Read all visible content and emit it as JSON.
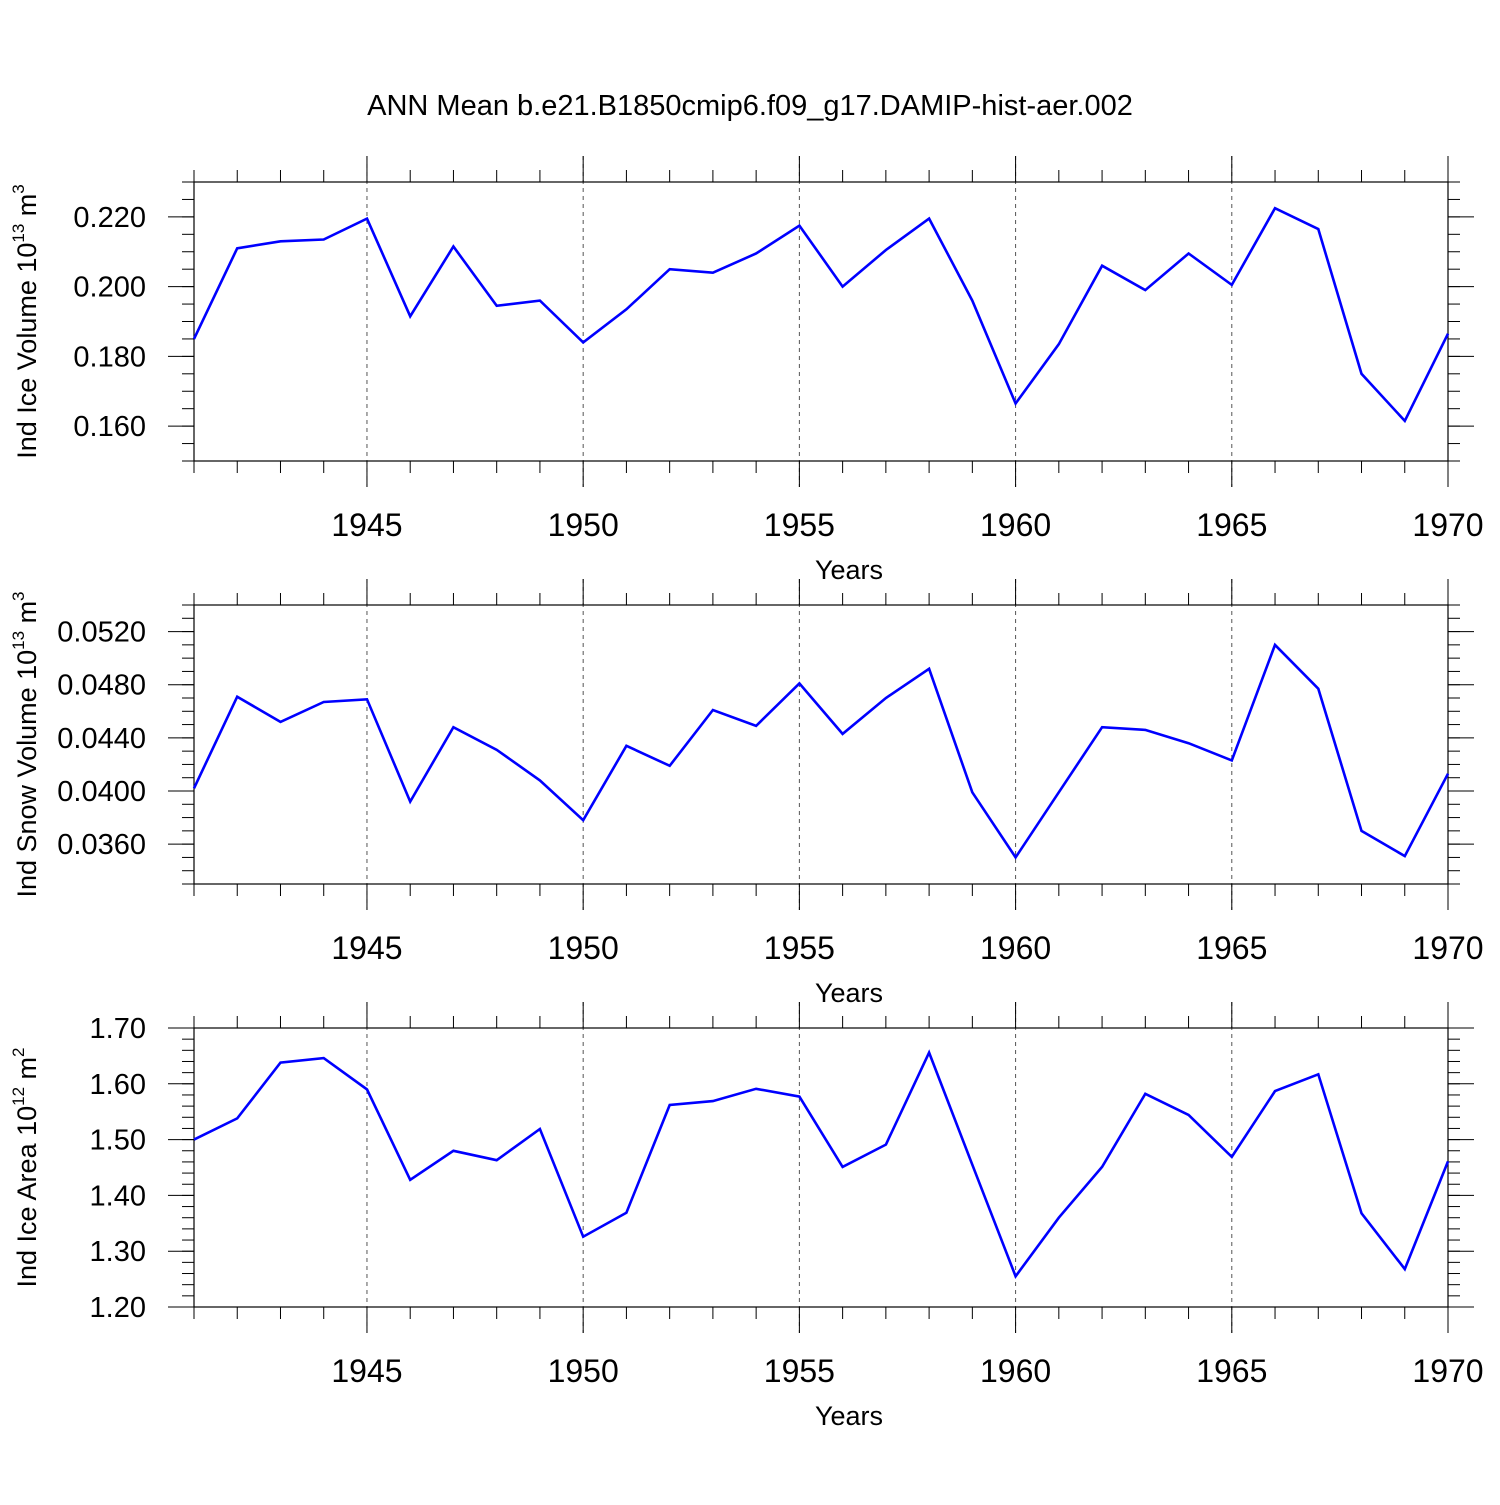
{
  "title": "ANN Mean b.e21.B1850cmip6.f09_g17.DAMIP-hist-aer.002",
  "chart_data": [
    {
      "type": "line",
      "ylabel": "Ind Ice Volume 10",
      "ylabel_exp": "13",
      "ylabel_unit": " m",
      "ylabel_unit_exp": "3",
      "xlabel": "Years",
      "xlim": [
        1941,
        1970
      ],
      "ylim": [
        0.15,
        0.23
      ],
      "yticks": [
        0.16,
        0.18,
        0.2,
        0.22
      ],
      "ytick_labels": [
        "0.160",
        "0.180",
        "0.200",
        "0.220"
      ],
      "yminor_step": 0.005,
      "xticks": [
        1945,
        1950,
        1955,
        1960,
        1965,
        1970
      ],
      "xtick_labels": [
        "1945",
        "1950",
        "1955",
        "1960",
        "1965",
        "1970"
      ],
      "series_color": "#0000ff",
      "x": [
        1941,
        1942,
        1943,
        1944,
        1945,
        1946,
        1947,
        1948,
        1949,
        1950,
        1951,
        1952,
        1953,
        1954,
        1955,
        1956,
        1957,
        1958,
        1959,
        1960,
        1961,
        1962,
        1963,
        1964,
        1965,
        1966,
        1967,
        1968,
        1969,
        1970
      ],
      "values": [
        0.185,
        0.211,
        0.213,
        0.2135,
        0.2195,
        0.1915,
        0.2115,
        0.1945,
        0.196,
        0.184,
        0.1935,
        0.205,
        0.204,
        0.2095,
        0.2175,
        0.2,
        0.2105,
        0.2195,
        0.196,
        0.1665,
        0.1835,
        0.206,
        0.199,
        0.2095,
        0.2005,
        0.2225,
        0.2165,
        0.175,
        0.1615,
        0.1865
      ]
    },
    {
      "type": "line",
      "ylabel": "Ind Snow Volume 10",
      "ylabel_exp": "13",
      "ylabel_unit": " m",
      "ylabel_unit_exp": "3",
      "xlabel": "Years",
      "xlim": [
        1941,
        1970
      ],
      "ylim": [
        0.033,
        0.054
      ],
      "yticks": [
        0.036,
        0.04,
        0.044,
        0.048,
        0.052
      ],
      "ytick_labels": [
        "0.0360",
        "0.0400",
        "0.0440",
        "0.0480",
        "0.0520"
      ],
      "yminor_step": 0.001,
      "xticks": [
        1945,
        1950,
        1955,
        1960,
        1965,
        1970
      ],
      "xtick_labels": [
        "1945",
        "1950",
        "1955",
        "1960",
        "1965",
        "1970"
      ],
      "series_color": "#0000ff",
      "x": [
        1941,
        1942,
        1943,
        1944,
        1945,
        1946,
        1947,
        1948,
        1949,
        1950,
        1951,
        1952,
        1953,
        1954,
        1955,
        1956,
        1957,
        1958,
        1959,
        1960,
        1961,
        1962,
        1963,
        1964,
        1965,
        1966,
        1967,
        1968,
        1969,
        1970
      ],
      "values": [
        0.0402,
        0.0471,
        0.0452,
        0.0467,
        0.0469,
        0.0392,
        0.0448,
        0.0431,
        0.0408,
        0.0378,
        0.0434,
        0.0419,
        0.0461,
        0.0449,
        0.0481,
        0.0443,
        0.047,
        0.0492,
        0.0399,
        0.035,
        0.0399,
        0.0448,
        0.0446,
        0.0436,
        0.0423,
        0.051,
        0.0477,
        0.037,
        0.0351,
        0.0413
      ]
    },
    {
      "type": "line",
      "ylabel": "Ind Ice Area 10",
      "ylabel_exp": "12",
      "ylabel_unit": " m",
      "ylabel_unit_exp": "2",
      "xlabel": "Years",
      "xlim": [
        1941,
        1970
      ],
      "ylim": [
        1.2,
        1.7
      ],
      "yticks": [
        1.2,
        1.3,
        1.4,
        1.5,
        1.6,
        1.7
      ],
      "ytick_labels": [
        "1.20",
        "1.30",
        "1.40",
        "1.50",
        "1.60",
        "1.70"
      ],
      "yminor_step": 0.02,
      "xticks": [
        1945,
        1950,
        1955,
        1960,
        1965,
        1970
      ],
      "xtick_labels": [
        "1945",
        "1950",
        "1955",
        "1960",
        "1965",
        "1970"
      ],
      "series_color": "#0000ff",
      "x": [
        1941,
        1942,
        1943,
        1944,
        1945,
        1946,
        1947,
        1948,
        1949,
        1950,
        1951,
        1952,
        1953,
        1954,
        1955,
        1956,
        1957,
        1958,
        1959,
        1960,
        1961,
        1962,
        1963,
        1964,
        1965,
        1966,
        1967,
        1968,
        1969,
        1970
      ],
      "values": [
        1.5,
        1.538,
        1.638,
        1.646,
        1.59,
        1.428,
        1.48,
        1.463,
        1.519,
        1.326,
        1.369,
        1.562,
        1.569,
        1.591,
        1.577,
        1.451,
        1.491,
        1.656,
        1.455,
        1.255,
        1.36,
        1.451,
        1.582,
        1.544,
        1.469,
        1.587,
        1.617,
        1.368,
        1.268,
        1.461
      ]
    }
  ]
}
